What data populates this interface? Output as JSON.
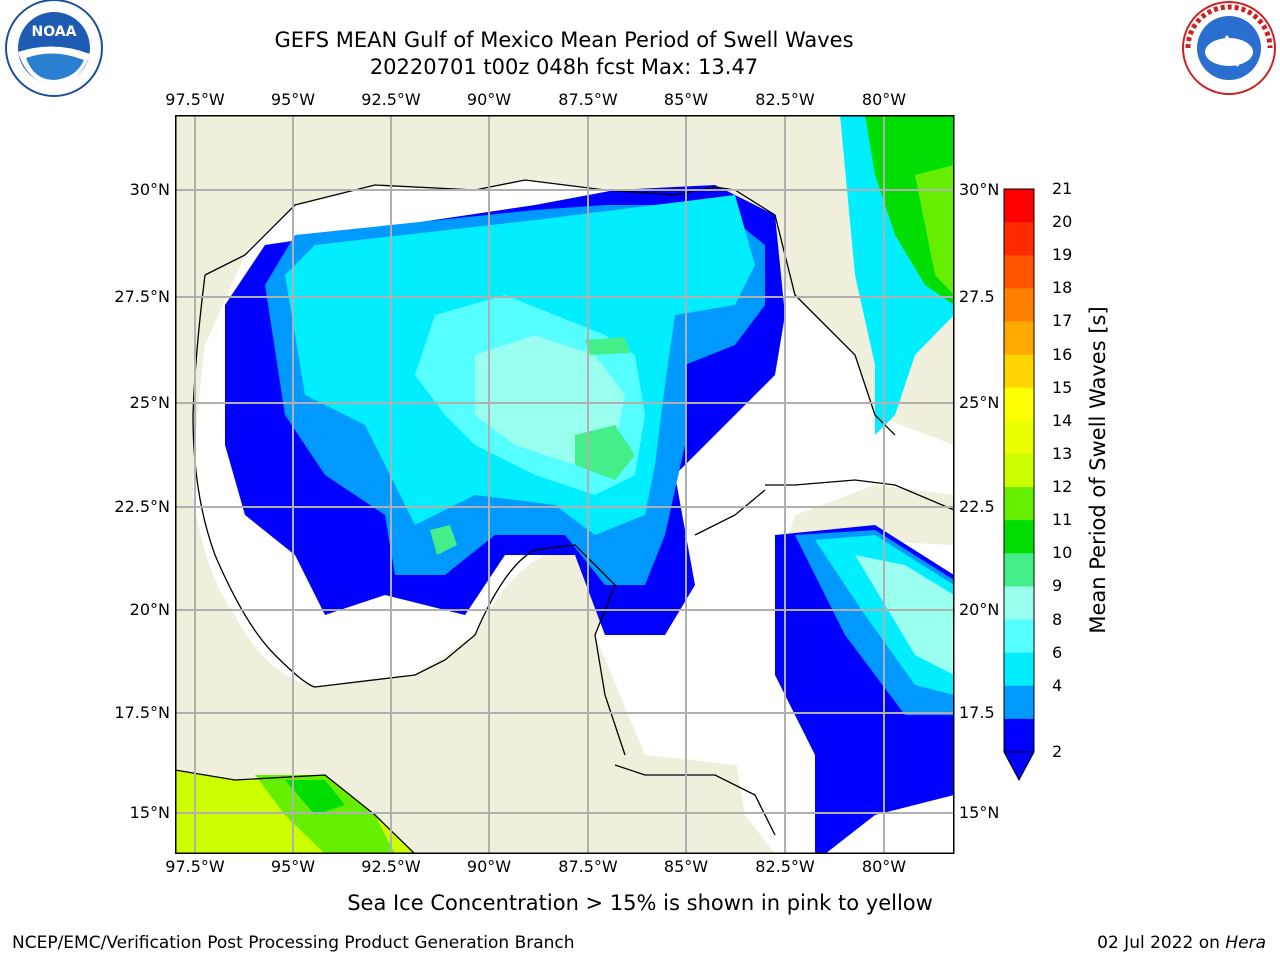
{
  "header": {
    "title_line1": "GEFS MEAN Gulf of Mexico Mean Period of Swell Waves",
    "title_line2": "20220701 t00z 048h fcst   Max: 13.47"
  },
  "logos": {
    "left": {
      "name": "noaa-logo",
      "text": "NOAA"
    },
    "right": {
      "name": "nws-logo",
      "text": "NATIONAL WEATHER SERVICE"
    }
  },
  "map": {
    "lon_labels": [
      "97.5°W",
      "95°W",
      "92.5°W",
      "90°W",
      "87.5°W",
      "85°W",
      "82.5°W",
      "80°W"
    ],
    "lat_labels_left": [
      "30°N",
      "27.5°N",
      "25°N",
      "22.5°N",
      "20°N",
      "17.5°N",
      "15°N"
    ],
    "lat_labels_right": [
      "30°N",
      "27.5",
      "25°N",
      "22.5",
      "20°N",
      "17.5",
      "15°N"
    ],
    "colors": {
      "land": "#efefdc",
      "ocean_nodata": "#ffffff",
      "grid": "#b0b0b0",
      "coast": "#000000"
    }
  },
  "colorbar": {
    "label": "Mean Period of Swell Waves [s]",
    "ticks": [
      "21",
      "20",
      "19",
      "18",
      "17",
      "16",
      "15",
      "14",
      "13",
      "12",
      "11",
      "10",
      "9",
      "8",
      "6",
      "4",
      "2"
    ],
    "colors": [
      "#ff0000",
      "#ff2a00",
      "#ff5500",
      "#ff8000",
      "#ffaa00",
      "#ffd500",
      "#ffff00",
      "#eaff00",
      "#ccff00",
      "#66ee00",
      "#00dd00",
      "#44ee88",
      "#99ffee",
      "#55ffff",
      "#00eeff",
      "#0099ff",
      "#0000ff"
    ]
  },
  "note": "Sea Ice Concentration > 15% is shown in pink to yellow",
  "footer": {
    "left": "NCEP/EMC/Verification Post Processing Product Generation Branch",
    "date": "02 Jul 2022 on",
    "host": "Hera"
  }
}
